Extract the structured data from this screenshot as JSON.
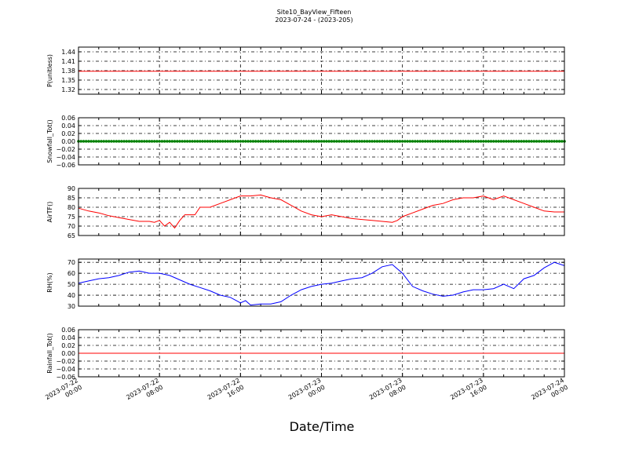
{
  "figure": {
    "title": "Site10_BayView_Fifteen",
    "subtitle": "2023-07-24 - (2023-205)",
    "xlabel": "Date/Time"
  },
  "chart_data": [
    {
      "type": "line",
      "ylabel": "P(unitless)",
      "ylim": [
        1.305,
        1.455
      ],
      "yticks": [
        "1.32",
        "1.35",
        "1.38",
        "1.41",
        "1.44"
      ],
      "grid": true,
      "color": "#ff0000",
      "x_hours": [
        0,
        48
      ],
      "values": [
        1.378,
        1.378
      ]
    },
    {
      "type": "scatter",
      "ylabel": "Snowfall_Tot()",
      "ylim": [
        -0.06,
        0.06
      ],
      "yticks": [
        "−0.06",
        "−0.04",
        "−0.02",
        "0.00",
        "0.02",
        "0.04",
        "0.06"
      ],
      "grid": true,
      "color": "#008000",
      "x_hours": [
        0,
        48
      ],
      "values": [
        0,
        0
      ],
      "marker": "dense-points"
    },
    {
      "type": "line",
      "ylabel": "AirTF()",
      "ylim": [
        65,
        90
      ],
      "yticks": [
        "65",
        "70",
        "75",
        "80",
        "85",
        "90"
      ],
      "grid": true,
      "color": "#ff0000",
      "x_hours": [
        0,
        1,
        2,
        3,
        4,
        5,
        6,
        7,
        7.5,
        8,
        8.5,
        9,
        9.5,
        10,
        10.5,
        11,
        11.5,
        12,
        13,
        14,
        15,
        16,
        17,
        18,
        19,
        20,
        21,
        22,
        23,
        24,
        25,
        26,
        27,
        28,
        29,
        30,
        31,
        31.5,
        32,
        33,
        34,
        35,
        36,
        37,
        38,
        39,
        40,
        40.5,
        41,
        42,
        43,
        44,
        45,
        46,
        47,
        48
      ],
      "values": [
        79.5,
        78,
        77,
        75.5,
        74.5,
        73.5,
        72.5,
        72.5,
        72,
        73,
        70,
        72,
        69,
        73,
        76,
        76,
        76,
        80,
        80,
        82,
        84,
        86,
        86,
        86.5,
        85,
        84,
        81,
        78,
        76,
        75,
        76,
        75,
        74,
        73.5,
        73,
        72.5,
        72,
        73,
        75,
        77,
        79,
        81,
        82,
        84,
        85,
        85,
        86,
        85,
        84,
        86,
        84,
        82,
        80,
        78,
        77.5,
        77.5
      ]
    },
    {
      "type": "line",
      "ylabel": "RH(%)",
      "ylim": [
        30,
        73
      ],
      "yticks": [
        "30",
        "40",
        "50",
        "60",
        "70"
      ],
      "grid": true,
      "color": "#0000ff",
      "x_hours": [
        0,
        1,
        2,
        3,
        4,
        5,
        6,
        7,
        8,
        9,
        10,
        11,
        12,
        13,
        14,
        15,
        16,
        16.5,
        17,
        18,
        19,
        20,
        21,
        22,
        23,
        24,
        25,
        26,
        27,
        28,
        29,
        30,
        31,
        32,
        33,
        34,
        35,
        36,
        37,
        38,
        39,
        40,
        41,
        42,
        43,
        44,
        45,
        46,
        47,
        48
      ],
      "values": [
        51,
        53,
        55,
        56,
        58,
        61,
        62,
        60,
        60,
        58,
        54,
        50,
        47,
        44,
        40,
        38,
        33,
        35,
        31,
        32,
        32,
        34,
        40,
        45,
        48,
        50,
        51,
        53,
        55,
        56,
        60,
        66,
        68,
        60,
        48,
        44,
        41,
        39,
        40,
        43,
        45,
        45,
        46,
        50,
        46,
        55,
        58,
        65,
        70,
        67
      ]
    },
    {
      "type": "line",
      "ylabel": "Rainfall_Tot()",
      "ylim": [
        -0.06,
        0.06
      ],
      "yticks": [
        "−0.06",
        "−0.04",
        "−0.02",
        "0.00",
        "0.02",
        "0.04",
        "0.06"
      ],
      "grid": true,
      "color": "#ff0000",
      "x_hours": [
        0,
        48
      ],
      "values": [
        0,
        0
      ]
    }
  ],
  "x_axis": {
    "range": [
      "2023-07-22 00:00",
      "2023-07-24 00:00"
    ],
    "tick_labels": [
      [
        "2023-07-22",
        "00:00"
      ],
      [
        "2023-07-22",
        "08:00"
      ],
      [
        "2023-07-22",
        "16:00"
      ],
      [
        "2023-07-23",
        "00:00"
      ],
      [
        "2023-07-23",
        "08:00"
      ],
      [
        "2023-07-23",
        "16:00"
      ],
      [
        "2023-07-24",
        "00:00"
      ]
    ]
  }
}
